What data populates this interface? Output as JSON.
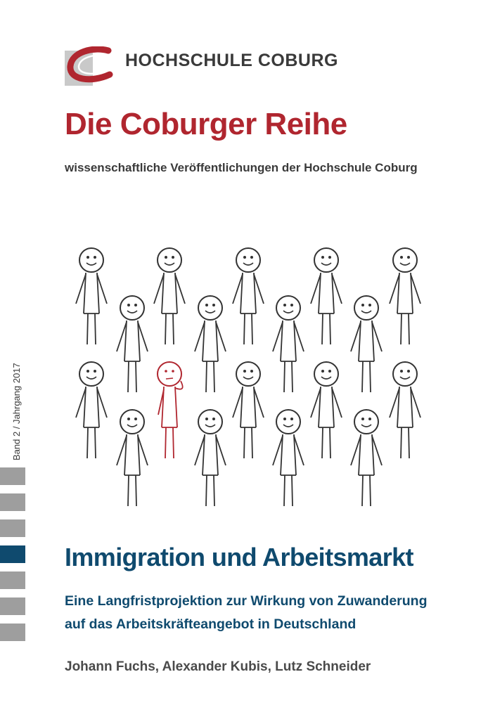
{
  "header": {
    "logo_icon": "hochschule-coburg-logo-icon",
    "institution": "HOCHSCHULE COBURG"
  },
  "series": {
    "title": "Die Coburger Reihe",
    "subtitle": "wissenschaftliche Veröffentlichungen der Hochschule Coburg",
    "volume": "Band 2 / Jahrgang 2017"
  },
  "illustration": {
    "icon": "stick-figure-crowd-icon",
    "highlight_color": "#b0262f",
    "figure_color": "#333333"
  },
  "book": {
    "title": "Immigration und Arbeitsmarkt",
    "subtitle_line1": "Eine Langfristprojektion zur Wirkung von Zuwanderung",
    "subtitle_line2": "auf das Arbeitskräfteangebot in Deutschland",
    "authors": "Johann Fuchs, Alexander Kubis, Lutz Schneider"
  },
  "colors": {
    "series_red": "#b0262f",
    "title_blue": "#0f4a6e",
    "bar_grey": "#9e9e9e"
  }
}
